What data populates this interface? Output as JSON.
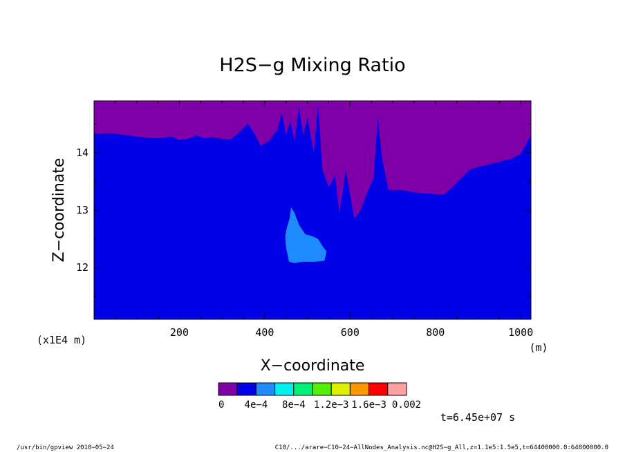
{
  "chart_data": {
    "type": "heatmap",
    "title": "H2S−g Mixing Ratio",
    "xlabel": "X−coordinate",
    "ylabel": "Z−coordinate",
    "x_unit": "(m)",
    "y_multiplier": "(x1E4 m)",
    "xlim": [
      0,
      1024
    ],
    "ylim": [
      11.1,
      14.9
    ],
    "x_ticks": [
      200,
      400,
      600,
      800,
      1000
    ],
    "x_tick_labels": [
      "200",
      "400",
      "600",
      "800",
      "1000"
    ],
    "y_ticks": [
      12,
      13,
      14
    ],
    "y_tick_labels": [
      "12",
      "13",
      "14"
    ],
    "colorbar": {
      "colors": [
        "#7f00a8",
        "#0000e6",
        "#1e8cff",
        "#00f0f0",
        "#00f078",
        "#50f000",
        "#dcf000",
        "#ff9600",
        "#ff0000",
        "#ffa0a0"
      ],
      "labels": [
        "0",
        "4e−4",
        "8e−4",
        "1.2e−3",
        "1.6e−3",
        "0.002"
      ]
    },
    "background_level_color": "#0000e6",
    "top_region": {
      "color": "#7f00a8",
      "boundary_z": [
        [
          0,
          14.33
        ],
        [
          40,
          14.34
        ],
        [
          80,
          14.3
        ],
        [
          110,
          14.27
        ],
        [
          150,
          14.25
        ],
        [
          180,
          14.28
        ],
        [
          200,
          14.22
        ],
        [
          220,
          14.24
        ],
        [
          240,
          14.3
        ],
        [
          260,
          14.25
        ],
        [
          280,
          14.27
        ],
        [
          300,
          14.24
        ],
        [
          320,
          14.23
        ],
        [
          340,
          14.35
        ],
        [
          360,
          14.5
        ],
        [
          375,
          14.35
        ],
        [
          390,
          14.12
        ],
        [
          410,
          14.2
        ],
        [
          430,
          14.4
        ],
        [
          440,
          14.7
        ],
        [
          450,
          14.3
        ],
        [
          460,
          14.55
        ],
        [
          470,
          14.2
        ],
        [
          480,
          14.8
        ],
        [
          490,
          14.3
        ],
        [
          500,
          14.6
        ],
        [
          515,
          14.0
        ],
        [
          525,
          14.85
        ],
        [
          535,
          13.7
        ],
        [
          550,
          13.4
        ],
        [
          565,
          13.6
        ],
        [
          575,
          12.95
        ],
        [
          590,
          13.7
        ],
        [
          610,
          12.85
        ],
        [
          625,
          13.0
        ],
        [
          640,
          13.3
        ],
        [
          655,
          13.55
        ],
        [
          665,
          14.6
        ],
        [
          675,
          13.9
        ],
        [
          690,
          13.35
        ],
        [
          720,
          13.35
        ],
        [
          760,
          13.3
        ],
        [
          800,
          13.28
        ],
        [
          820,
          13.27
        ],
        [
          840,
          13.4
        ],
        [
          860,
          13.55
        ],
        [
          880,
          13.7
        ],
        [
          900,
          13.75
        ],
        [
          940,
          13.82
        ],
        [
          980,
          13.9
        ],
        [
          1000,
          13.98
        ],
        [
          1024,
          14.3
        ]
      ]
    },
    "patch_region": {
      "color": "#1e8cff",
      "outline_xz": [
        [
          457,
          12.1
        ],
        [
          470,
          12.08
        ],
        [
          490,
          12.1
        ],
        [
          520,
          12.1
        ],
        [
          540,
          12.12
        ],
        [
          545,
          12.28
        ],
        [
          535,
          12.38
        ],
        [
          525,
          12.5
        ],
        [
          510,
          12.55
        ],
        [
          495,
          12.58
        ],
        [
          480,
          12.75
        ],
        [
          470,
          12.95
        ],
        [
          462,
          13.05
        ],
        [
          458,
          12.85
        ],
        [
          452,
          12.7
        ],
        [
          448,
          12.55
        ],
        [
          450,
          12.35
        ],
        [
          454,
          12.2
        ]
      ]
    },
    "annotation": "t=6.45e+07 s"
  },
  "footer": {
    "left": "/usr/bin/gpview   2010−05−24",
    "right": "C10/.../arare−C10−24−AllNodes_Analysis.nc@H2S−g_All,z=1.1e5:1.5e5,t=64400000.0:64800000.0"
  }
}
